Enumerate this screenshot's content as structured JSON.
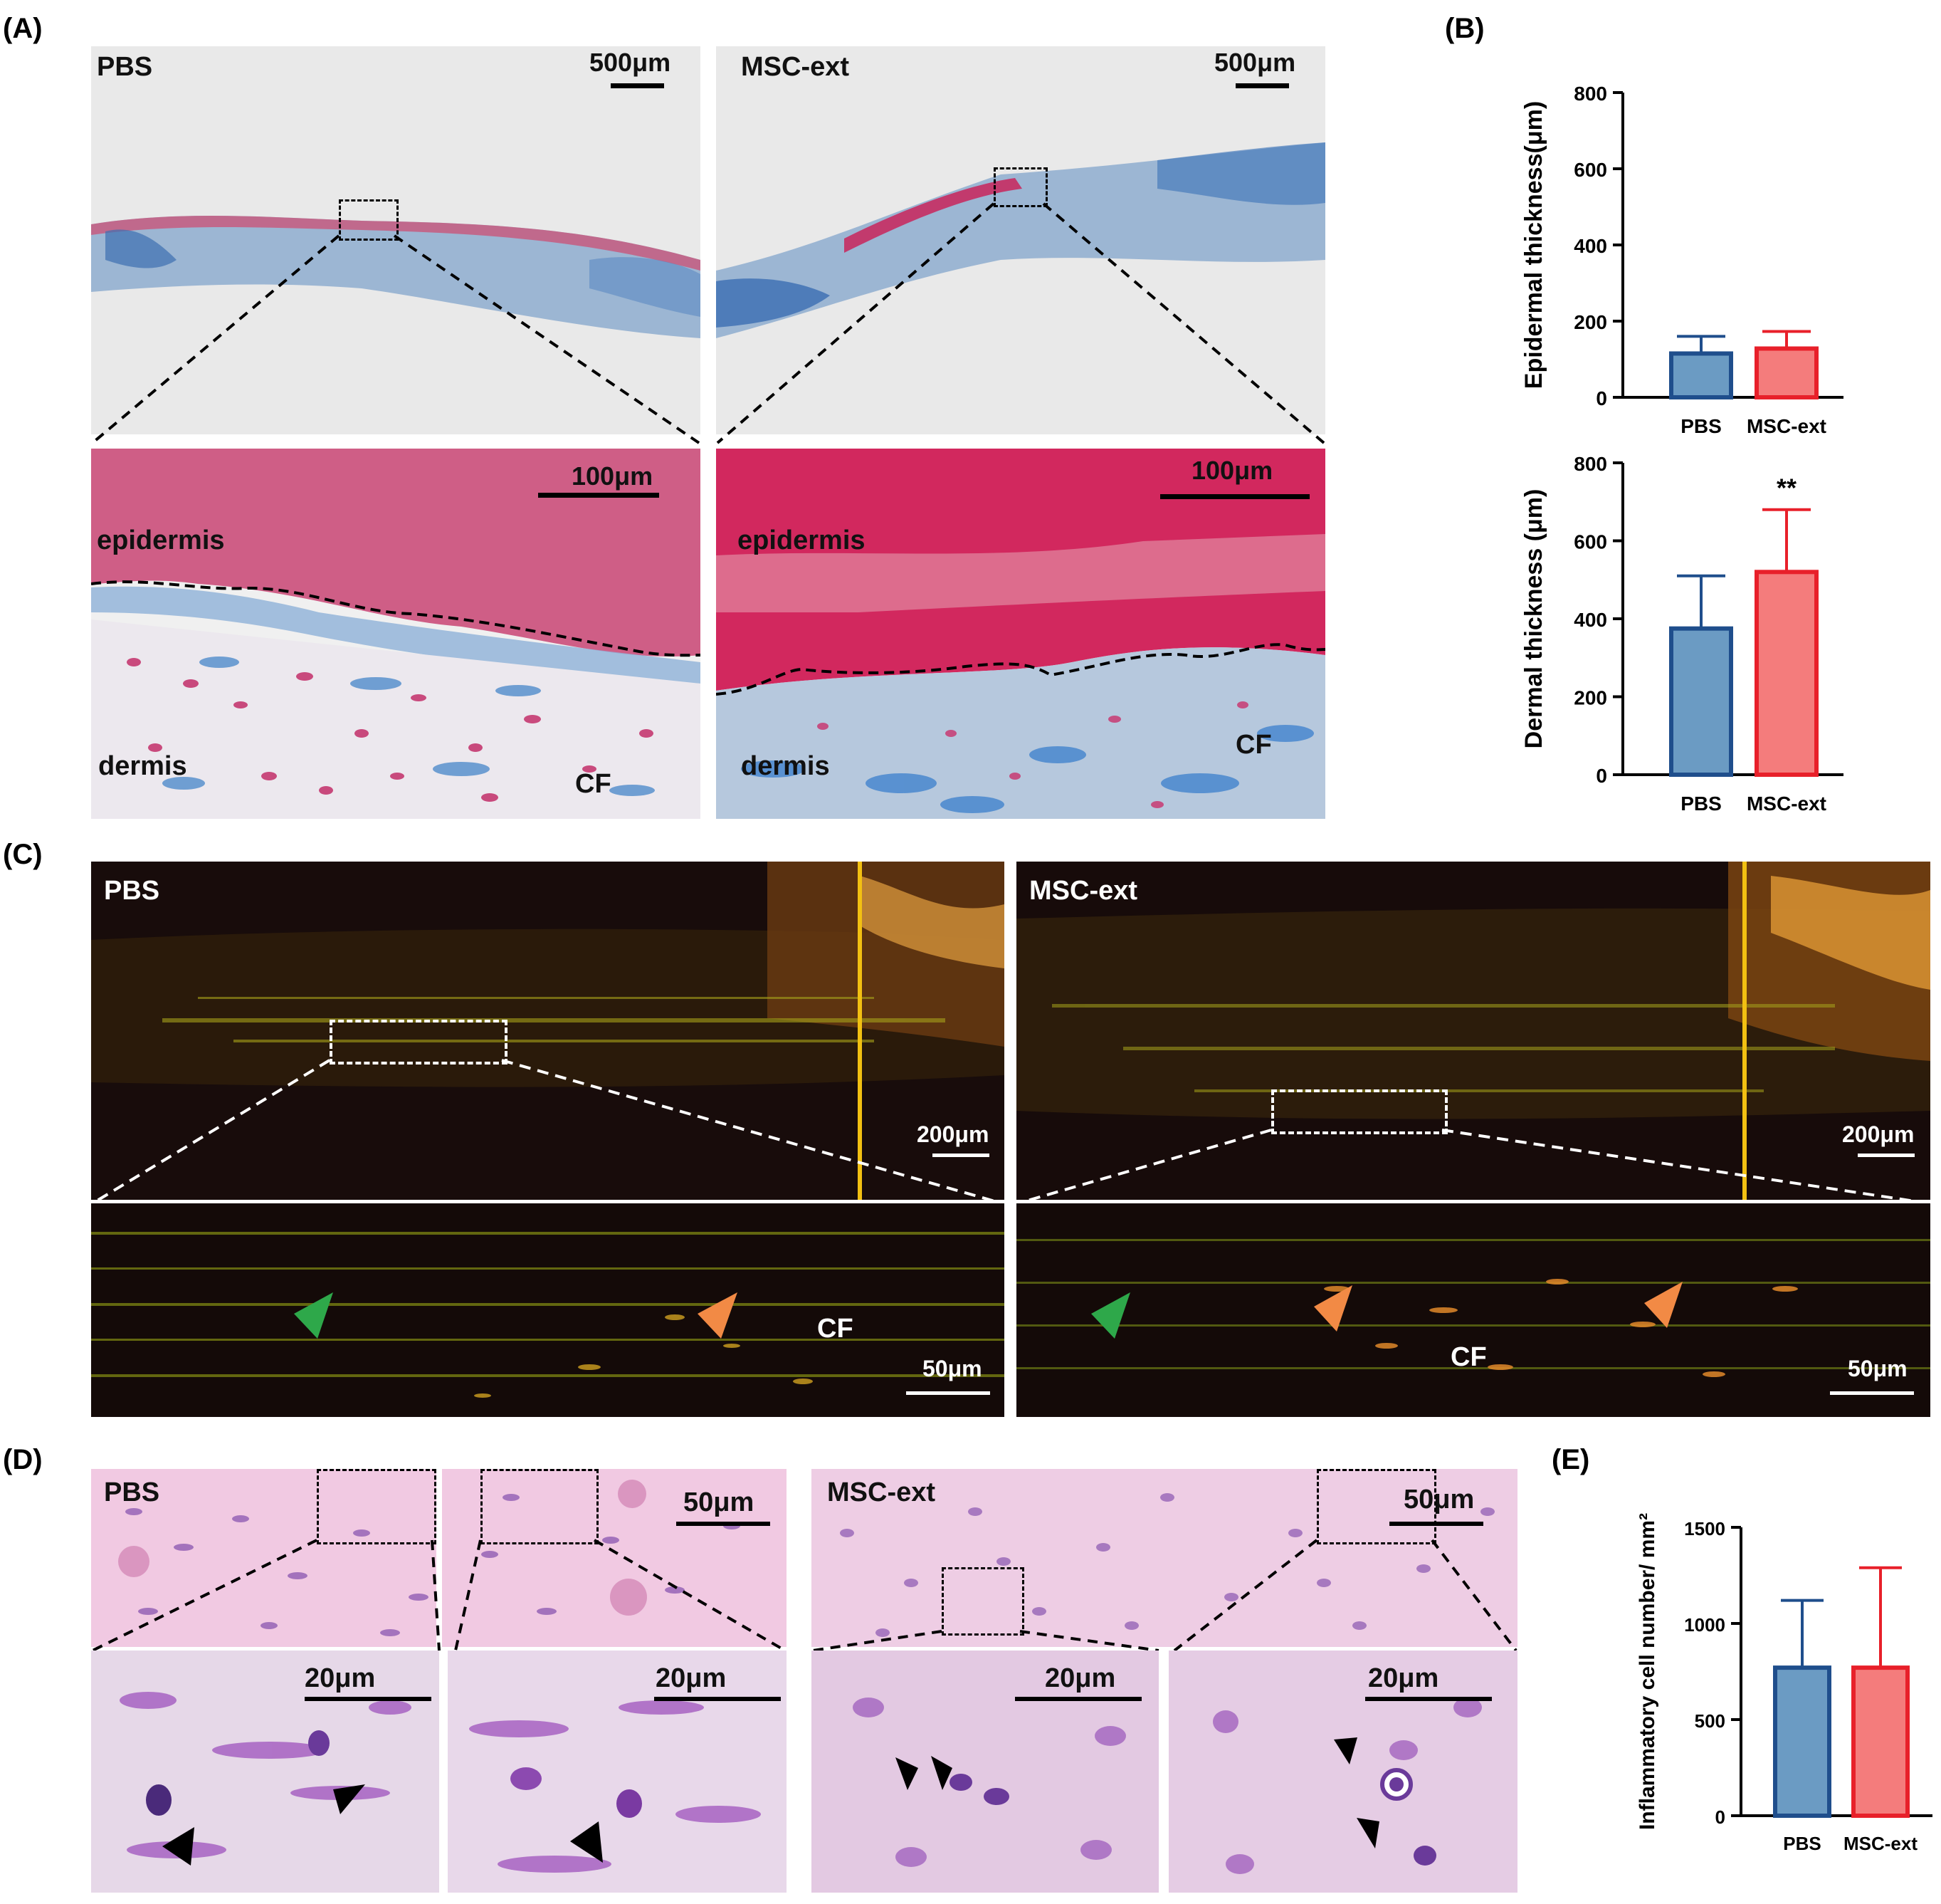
{
  "panels": {
    "a": {
      "label": "(A)",
      "pbs": "PBS",
      "msc": "MSC-ext",
      "scale_top": "500μm",
      "scale_bottom": "100μm",
      "epidermis": "epidermis",
      "dermis": "dermis",
      "cf": "CF"
    },
    "b": {
      "label": "(B)"
    },
    "c": {
      "label": "(C)",
      "pbs": "PBS",
      "msc": "MSC-ext",
      "scale_top": "200μm",
      "scale_bottom": "50μm",
      "cf": "CF"
    },
    "d": {
      "label": "(D)",
      "pbs": "PBS",
      "msc": "MSC-ext",
      "scale_top": "50μm",
      "scale_bottom": "20μm"
    },
    "e": {
      "label": "(E)"
    }
  },
  "chart_data": [
    {
      "type": "bar",
      "ylabel": "Epidermal thickness(μm)",
      "categories": [
        "PBS",
        "MSC-ext"
      ],
      "values": [
        115,
        128
      ],
      "errors": [
        45,
        45
      ],
      "ylim": [
        0,
        800
      ],
      "yticks": [
        0,
        200,
        400,
        600,
        800
      ],
      "colors": [
        "#6b9bc3",
        "#f47c7c"
      ],
      "edge_colors": [
        "#1f4e8c",
        "#e8202a"
      ],
      "annotations": []
    },
    {
      "type": "bar",
      "ylabel": "Dermal thickness (μm)",
      "categories": [
        "PBS",
        "MSC-ext"
      ],
      "values": [
        375,
        520
      ],
      "errors": [
        135,
        160
      ],
      "ylim": [
        0,
        800
      ],
      "yticks": [
        0,
        200,
        400,
        600,
        800
      ],
      "colors": [
        "#6b9bc3",
        "#f47c7c"
      ],
      "edge_colors": [
        "#1f4e8c",
        "#e8202a"
      ],
      "annotations": [
        {
          "category": "MSC-ext",
          "text": "**"
        }
      ]
    },
    {
      "type": "bar",
      "ylabel": "Inflammatory cell number/ mm²",
      "categories": [
        "PBS",
        "MSC-ext"
      ],
      "values": [
        770,
        770
      ],
      "errors": [
        350,
        520
      ],
      "ylim": [
        0,
        1500
      ],
      "yticks": [
        0,
        500,
        1000,
        1500
      ],
      "colors": [
        "#6b9bc3",
        "#f47c7c"
      ],
      "edge_colors": [
        "#1f4e8c",
        "#e8202a"
      ],
      "annotations": []
    }
  ]
}
